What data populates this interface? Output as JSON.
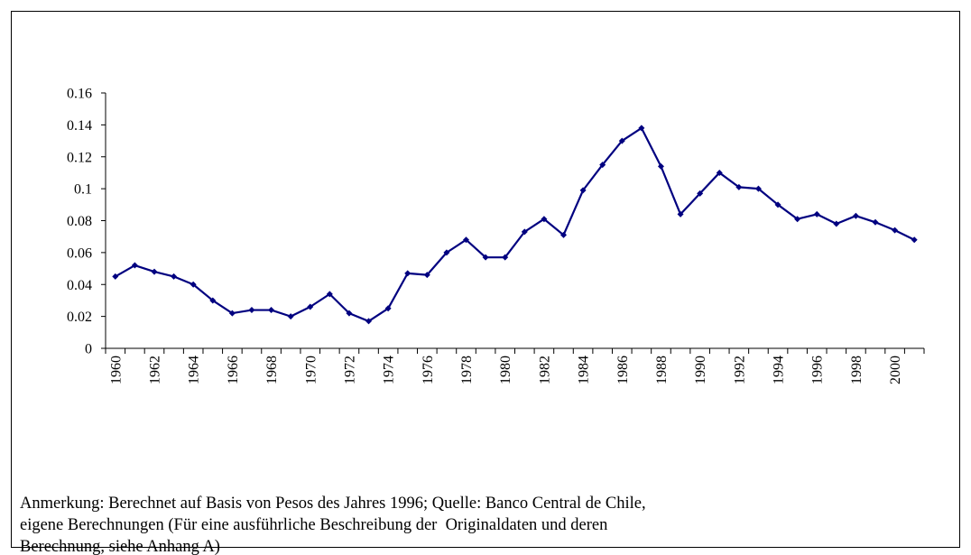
{
  "chart_data": {
    "type": "line",
    "categories": [
      "1960",
      null,
      "1962",
      null,
      "1964",
      null,
      "1966",
      null,
      "1968",
      null,
      "1970",
      null,
      "1972",
      null,
      "1974",
      null,
      "1976",
      null,
      "1978",
      null,
      "1980",
      null,
      "1982",
      null,
      "1984",
      null,
      "1986",
      null,
      "1988",
      null,
      "1990",
      null,
      "1992",
      null,
      "1994",
      null,
      "1996",
      null,
      "1998",
      null,
      "2000",
      null
    ],
    "values": [
      0.045,
      0.052,
      0.048,
      0.045,
      0.04,
      0.03,
      0.022,
      0.024,
      0.024,
      0.02,
      0.026,
      0.034,
      0.022,
      0.017,
      0.025,
      0.047,
      0.046,
      0.06,
      0.068,
      0.057,
      0.057,
      0.073,
      0.081,
      0.071,
      0.099,
      0.115,
      0.13,
      0.138,
      0.114,
      0.084,
      0.097,
      0.11,
      0.101,
      0.1,
      0.09,
      0.081,
      0.084,
      0.078,
      0.083,
      0.079,
      0.074,
      0.068
    ],
    "color": "#000080",
    "ylim": [
      0,
      0.16
    ],
    "yticks": [
      0,
      0.02,
      0.04,
      0.06,
      0.08,
      0.1,
      0.12,
      0.14,
      0.16
    ],
    "grid": false,
    "note": [
      "Anmerkung: Berechnet auf Basis von Pesos des Jahres 1996; Quelle: Banco Central de Chile,",
      "eigene Berechnungen (Für eine ausführliche Beschreibung der  Originaldaten und deren",
      "Berechnung, siehe Anhang A)"
    ]
  }
}
